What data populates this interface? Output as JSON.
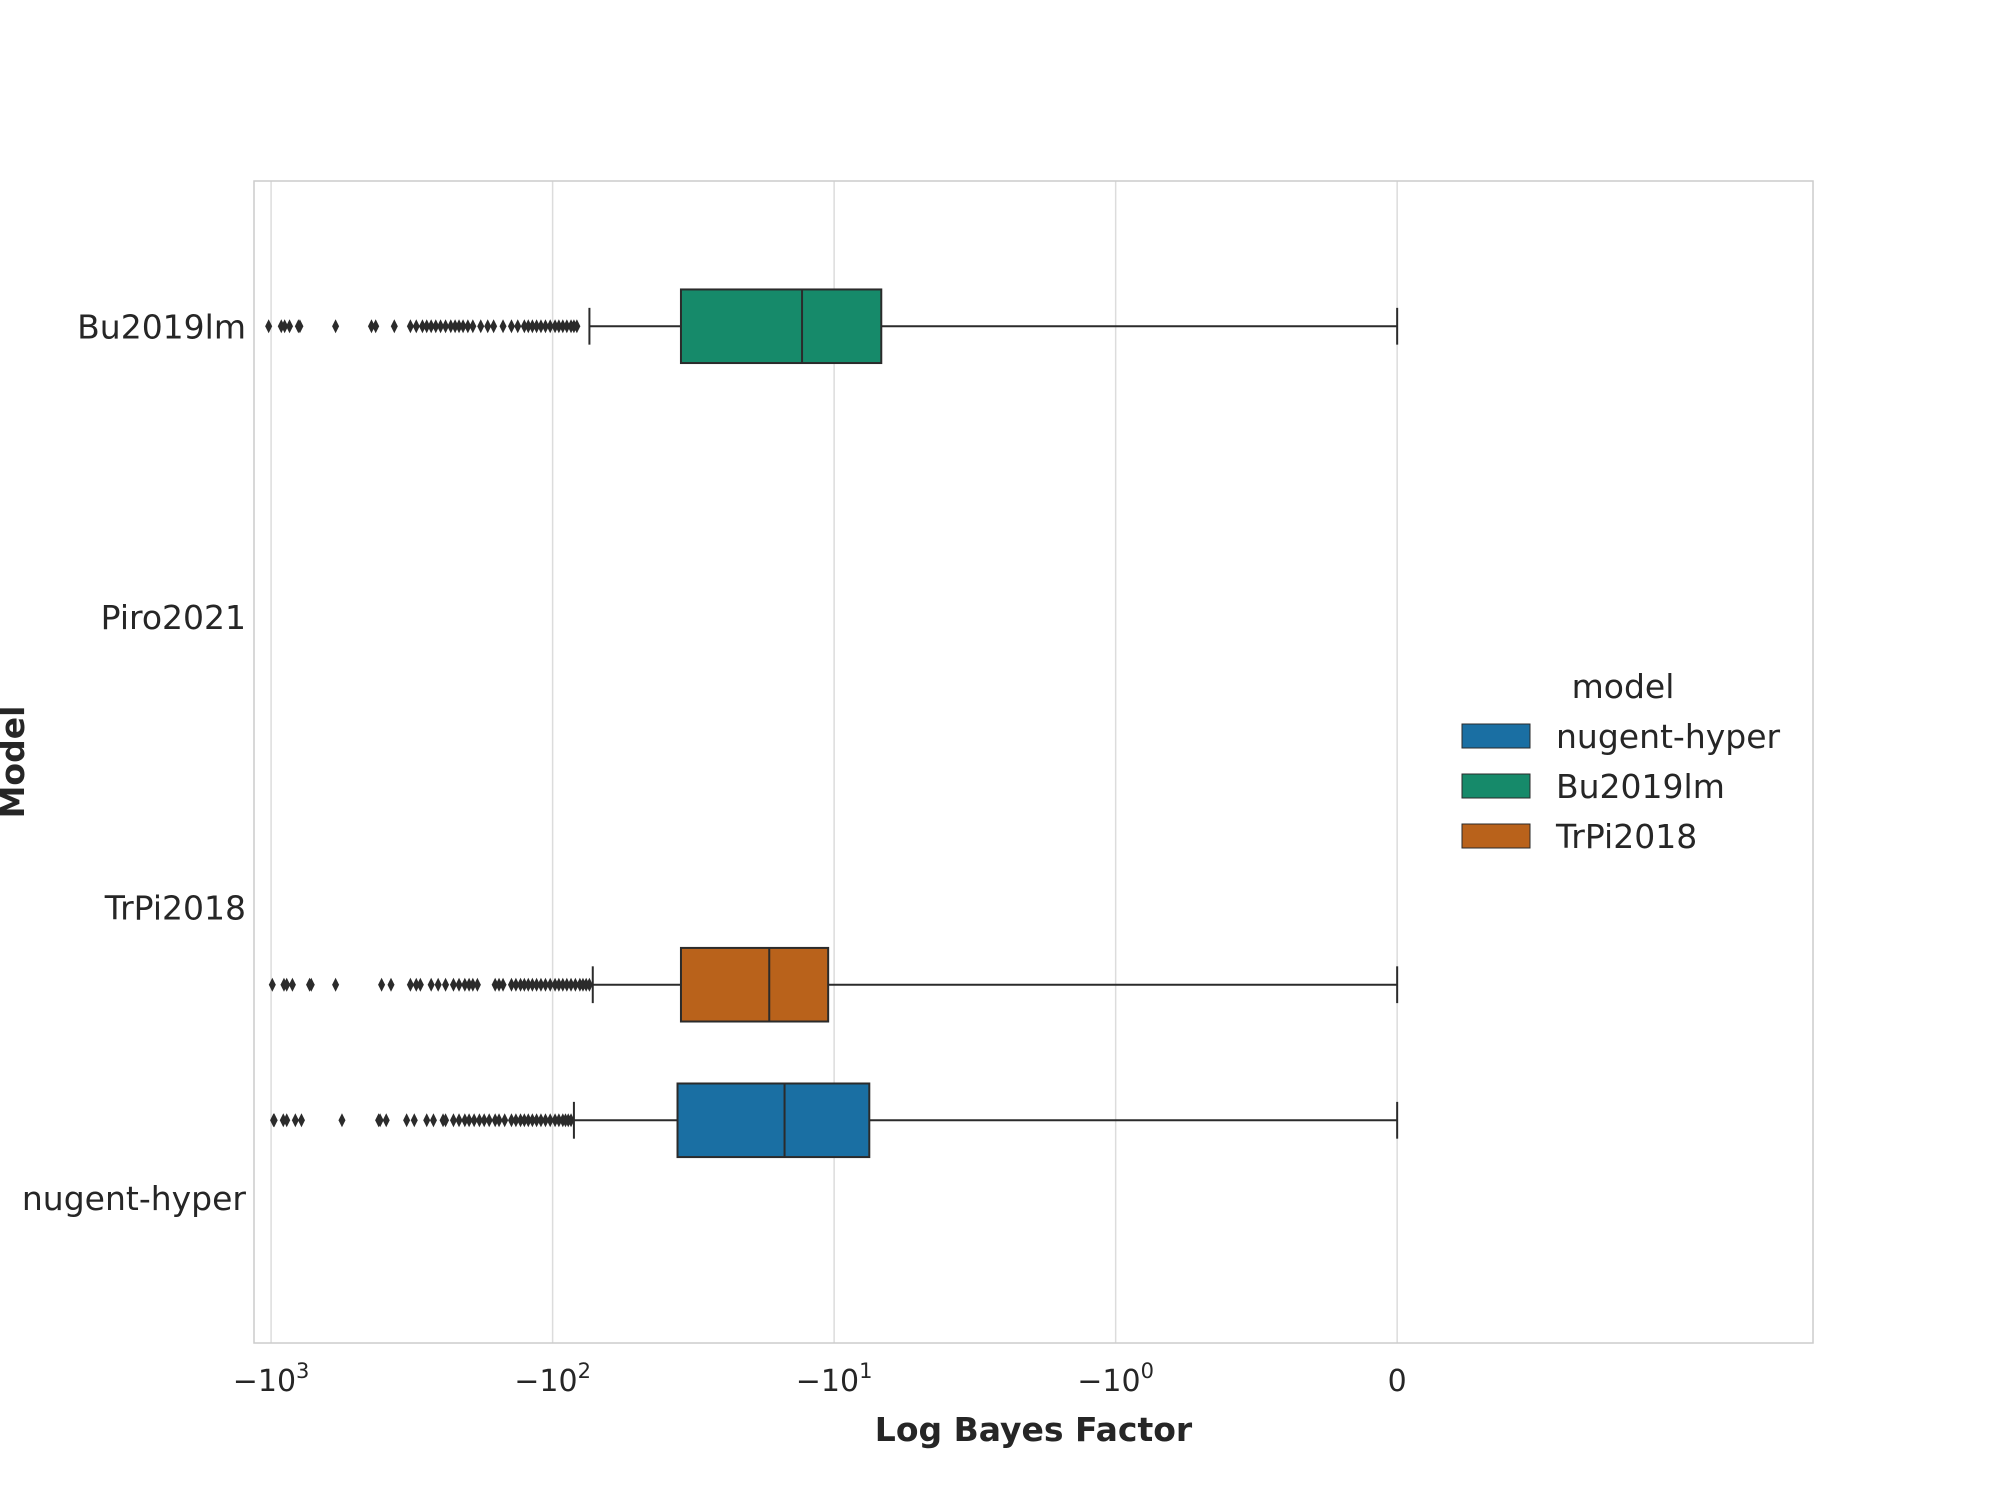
{
  "chart_data": {
    "type": "box",
    "orientation": "horizontal",
    "xlabel": "Log Bayes Factor",
    "ylabel": "Model",
    "xscale": "symlog",
    "xlim": [
      -1150,
      3
    ],
    "x_ticks": [
      {
        "value": -1000,
        "base": "−10",
        "exp": "3"
      },
      {
        "value": -100,
        "base": "−10",
        "exp": "2"
      },
      {
        "value": -10,
        "base": "−10",
        "exp": "1"
      },
      {
        "value": -1,
        "base": "−10",
        "exp": "0"
      },
      {
        "value": 0,
        "base": "0",
        "exp": ""
      }
    ],
    "categories": [
      "Bu2019lm",
      "Piro2021",
      "TrPi2018",
      "nugent-hyper"
    ],
    "grid": true,
    "legend": {
      "title": "model",
      "placement": "center-right",
      "entries": [
        {
          "name": "nugent-hyper",
          "color": "#1a6fa3"
        },
        {
          "name": "Bu2019lm",
          "color": "#168a6a"
        },
        {
          "name": "TrPi2018",
          "color": "#b9621b"
        }
      ]
    },
    "series": [
      {
        "name": "nugent-hyper",
        "category": "nugent-hyper",
        "hue_index": 0,
        "color": "#1a6fa3",
        "whisker_low": -84,
        "q1": -36,
        "median": -15,
        "q3": -7.5,
        "whisker_high": 0,
        "outliers": [
          -980,
          -975,
          -905,
          -880,
          -820,
          -780,
          -560,
          -415,
          -410,
          -390,
          -330,
          -310,
          -280,
          -265,
          -245,
          -240,
          -225,
          -215,
          -205,
          -198,
          -190,
          -182,
          -175,
          -168,
          -160,
          -155,
          -148,
          -140,
          -135,
          -130,
          -126,
          -122,
          -118,
          -114,
          -110,
          -106,
          -102,
          -98,
          -95,
          -92,
          -90,
          -88,
          -86
        ]
      },
      {
        "name": "Bu2019lm",
        "category": "Bu2019lm",
        "hue_index": 1,
        "color": "#168a6a",
        "whisker_low": -74,
        "q1": -35,
        "median": -13,
        "q3": -6.8,
        "whisker_high": 0,
        "outliers": [
          -1020,
          -920,
          -895,
          -860,
          -800,
          -790,
          -590,
          -440,
          -425,
          -365,
          -320,
          -305,
          -290,
          -280,
          -270,
          -260,
          -250,
          -240,
          -230,
          -222,
          -215,
          -208,
          -200,
          -192,
          -180,
          -170,
          -162,
          -150,
          -140,
          -133,
          -126,
          -122,
          -118,
          -114,
          -110,
          -106,
          -102,
          -98,
          -95,
          -92,
          -89,
          -86,
          -84,
          -82
        ]
      },
      {
        "name": "TrPi2018",
        "category": "TrPi2018",
        "hue_index": 2,
        "color": "#b9621b",
        "whisker_low": -72,
        "q1": -35,
        "median": -17,
        "q3": -10.5,
        "whisker_high": 0,
        "outliers": [
          -990,
          -900,
          -880,
          -840,
          -730,
          -720,
          -590,
          -405,
          -375,
          -320,
          -305,
          -295,
          -270,
          -255,
          -240,
          -225,
          -215,
          -205,
          -198,
          -192,
          -185,
          -160,
          -155,
          -150,
          -140,
          -135,
          -130,
          -126,
          -122,
          -118,
          -114,
          -110,
          -106,
          -102,
          -98,
          -95,
          -92,
          -89,
          -86,
          -83,
          -80,
          -78,
          -76,
          -74
        ]
      }
    ]
  }
}
